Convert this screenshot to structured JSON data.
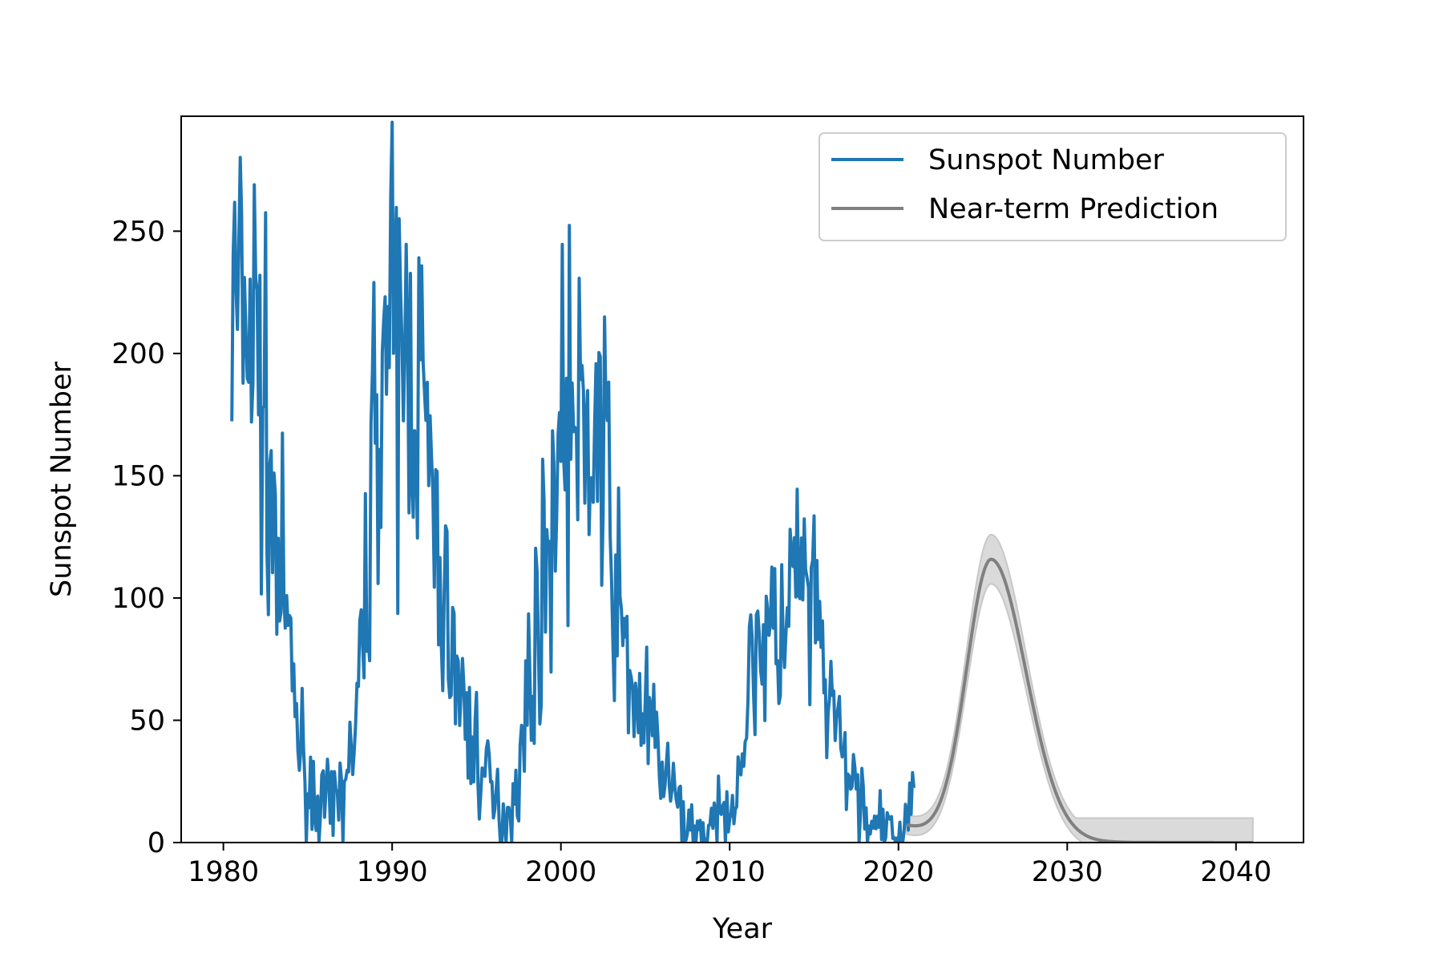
{
  "chart_data": {
    "type": "line",
    "title": "",
    "xlabel": "Year",
    "ylabel": "Sunspot Number",
    "xlim": [
      1977.5,
      2044
    ],
    "ylim": [
      0,
      297
    ],
    "xticks": [
      1980,
      1990,
      2000,
      2010,
      2020,
      2030,
      2040
    ],
    "yticks": [
      0,
      50,
      100,
      150,
      200,
      250
    ],
    "grid": false,
    "legend": {
      "placement": "top-right"
    },
    "colors": {
      "observed": "#1f77b4",
      "prediction": "#808080",
      "band": "#d3d3d3"
    },
    "series": [
      {
        "name": "Sunspot Number",
        "style": "noisy-line",
        "seed": 7,
        "samples_per_year": 12,
        "x_range": [
          1980.5,
          2020.92
        ],
        "anchors": [
          [
            1980.5,
            215
          ],
          [
            1981.0,
            218
          ],
          [
            1981.5,
            212
          ],
          [
            1982.0,
            205
          ],
          [
            1982.5,
            165
          ],
          [
            1983.0,
            128
          ],
          [
            1983.5,
            100
          ],
          [
            1984.0,
            72
          ],
          [
            1984.5,
            42
          ],
          [
            1985.0,
            22
          ],
          [
            1985.5,
            18
          ],
          [
            1986.0,
            14
          ],
          [
            1986.5,
            12
          ],
          [
            1987.0,
            22
          ],
          [
            1987.5,
            32
          ],
          [
            1988.0,
            55
          ],
          [
            1988.5,
            110
          ],
          [
            1989.0,
            178
          ],
          [
            1989.5,
            205
          ],
          [
            1990.0,
            200
          ],
          [
            1990.5,
            195
          ],
          [
            1991.0,
            200
          ],
          [
            1991.5,
            195
          ],
          [
            1992.0,
            170
          ],
          [
            1992.5,
            120
          ],
          [
            1993.0,
            100
          ],
          [
            1993.5,
            85
          ],
          [
            1994.0,
            60
          ],
          [
            1994.5,
            48
          ],
          [
            1995.0,
            38
          ],
          [
            1995.5,
            28
          ],
          [
            1996.0,
            16
          ],
          [
            1996.5,
            9
          ],
          [
            1997.0,
            15
          ],
          [
            1997.5,
            30
          ],
          [
            1998.0,
            55
          ],
          [
            1998.5,
            85
          ],
          [
            1999.0,
            105
          ],
          [
            1999.5,
            140
          ],
          [
            2000.0,
            172
          ],
          [
            2000.5,
            180
          ],
          [
            2001.0,
            158
          ],
          [
            2001.5,
            165
          ],
          [
            2002.0,
            170
          ],
          [
            2002.5,
            158
          ],
          [
            2003.0,
            120
          ],
          [
            2003.5,
            90
          ],
          [
            2004.0,
            70
          ],
          [
            2004.5,
            58
          ],
          [
            2005.0,
            50
          ],
          [
            2005.5,
            42
          ],
          [
            2006.0,
            30
          ],
          [
            2006.5,
            22
          ],
          [
            2007.0,
            12
          ],
          [
            2007.5,
            8
          ],
          [
            2008.0,
            4
          ],
          [
            2008.5,
            3
          ],
          [
            2009.0,
            5
          ],
          [
            2009.5,
            8
          ],
          [
            2010.0,
            18
          ],
          [
            2010.5,
            28
          ],
          [
            2011.0,
            50
          ],
          [
            2011.5,
            85
          ],
          [
            2012.0,
            88
          ],
          [
            2012.5,
            80
          ],
          [
            2013.0,
            82
          ],
          [
            2013.5,
            92
          ],
          [
            2014.0,
            112
          ],
          [
            2014.5,
            100
          ],
          [
            2015.0,
            88
          ],
          [
            2015.5,
            72
          ],
          [
            2016.0,
            55
          ],
          [
            2016.5,
            40
          ],
          [
            2017.0,
            28
          ],
          [
            2017.5,
            22
          ],
          [
            2018.0,
            12
          ],
          [
            2018.5,
            6
          ],
          [
            2019.0,
            5
          ],
          [
            2019.5,
            3
          ],
          [
            2020.0,
            2
          ],
          [
            2020.5,
            8
          ],
          [
            2020.92,
            30
          ]
        ]
      },
      {
        "name": "Near-term Prediction",
        "style": "smooth-line",
        "x_range": [
          2020.5,
          2041.0
        ],
        "peak_x": 2025.5,
        "peak_y": 114.5,
        "start_y": 7
      }
    ],
    "uncertainty_band": {
      "x_range": [
        2020.5,
        2041.0
      ],
      "half_width_at_peak": 10,
      "floor_upper": 10
    }
  }
}
